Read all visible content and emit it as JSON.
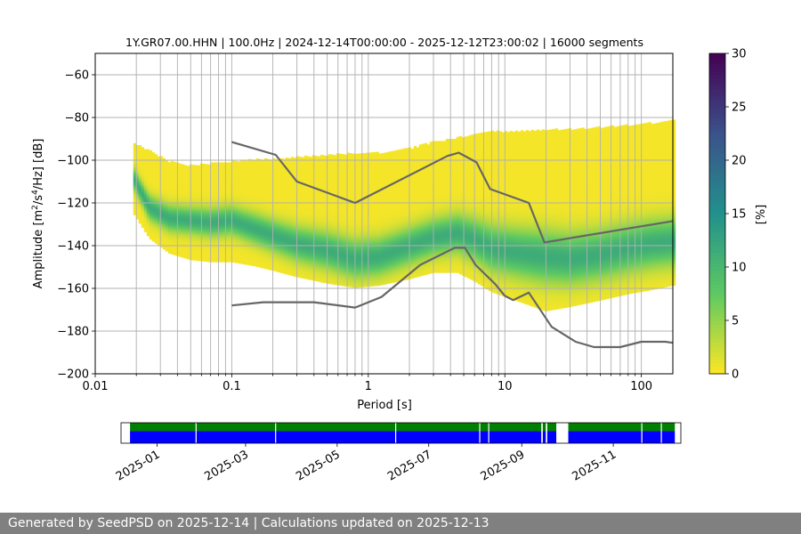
{
  "chart_data": {
    "type": "heatmap",
    "title": "1Y.GR07.00.HHN | 100.0Hz | 2024-12-14T00:00:00 - 2025-12-12T23:00:02 | 16000 segments",
    "xlabel": "Period [s]",
    "ylabel_parts": [
      "Amplitude [m",
      "2",
      "/s",
      "4",
      "/Hz] [dB]"
    ],
    "x_scale": "log",
    "xlim": [
      0.01,
      170
    ],
    "ylim": [
      -200,
      -50
    ],
    "x_ticks": [
      {
        "v": 0.01,
        "label": "0.01"
      },
      {
        "v": 0.1,
        "label": "0.1"
      },
      {
        "v": 1,
        "label": "1"
      },
      {
        "v": 10,
        "label": "10"
      },
      {
        "v": 100,
        "label": "100"
      }
    ],
    "y_ticks": [
      {
        "v": -60,
        "label": "−60"
      },
      {
        "v": -80,
        "label": "−80"
      },
      {
        "v": -100,
        "label": "−100"
      },
      {
        "v": -120,
        "label": "−120"
      },
      {
        "v": -140,
        "label": "−140"
      },
      {
        "v": -160,
        "label": "−160"
      },
      {
        "v": -180,
        "label": "−180"
      },
      {
        "v": -200,
        "label": "−200"
      }
    ],
    "grid": "on",
    "colorbar": {
      "label": "[%]",
      "range": [
        0,
        30
      ],
      "ticks": [
        {
          "v": 0,
          "label": "0"
        },
        {
          "v": 5,
          "label": "5"
        },
        {
          "v": 10,
          "label": "10"
        },
        {
          "v": 15,
          "label": "15"
        },
        {
          "v": 20,
          "label": "20"
        },
        {
          "v": 25,
          "label": "25"
        },
        {
          "v": 30,
          "label": "30"
        }
      ],
      "colormap": [
        "#fde725",
        "#5ec962",
        "#21918c",
        "#3b528b",
        "#440154"
      ]
    },
    "distribution": {
      "period": [
        0.019,
        0.025,
        0.035,
        0.05,
        0.07,
        0.1,
        0.15,
        0.2,
        0.3,
        0.5,
        0.8,
        1.2,
        2,
        3,
        4.5,
        6,
        8,
        12,
        20,
        30,
        50,
        80,
        120,
        170
      ],
      "mode_db": [
        -108,
        -122,
        -127,
        -128,
        -129,
        -128,
        -132,
        -135,
        -139,
        -142,
        -146,
        -145,
        -140,
        -136,
        -134,
        -137,
        -141,
        -143,
        -145,
        -146,
        -144,
        -141,
        -139,
        -138
      ],
      "upper_db": [
        -92,
        -96,
        -101,
        -103,
        -102,
        -101,
        -100,
        -100,
        -99,
        -98,
        -97,
        -97,
        -95,
        -92,
        -90,
        -88,
        -87,
        -87,
        -86,
        -86,
        -85,
        -84,
        -83,
        -82
      ],
      "lower_db": [
        -124,
        -136,
        -143,
        -146,
        -147,
        -147,
        -149,
        -151,
        -154,
        -157,
        -159,
        -158,
        -155,
        -152,
        -152,
        -156,
        -161,
        -165,
        -170,
        -168,
        -165,
        -162,
        -160,
        -158
      ]
    },
    "series": [
      {
        "name": "",
        "x": [
          0.1,
          0.21,
          0.3,
          0.8,
          3.8,
          4.6,
          6.2,
          7.8,
          15,
          19.5,
          170
        ],
        "y": [
          -91.5,
          -97.5,
          -110,
          -120,
          -98,
          -96.5,
          -101,
          -113.5,
          -120,
          -138.5,
          -128.5
        ]
      },
      {
        "name": "",
        "x": [
          0.1,
          0.17,
          0.4,
          0.8,
          1.25,
          2.4,
          4.3,
          5.1,
          6.1,
          8.5,
          10,
          11.5,
          15,
          22,
          33,
          45,
          70,
          100,
          150,
          170
        ],
        "y": [
          -168,
          -166.5,
          -166.5,
          -169,
          -164,
          -149,
          -141,
          -141,
          -149,
          -158,
          -163.5,
          -165.5,
          -162,
          -178,
          -185,
          -187.5,
          -187.5,
          -185,
          -185,
          -185.5
        ]
      }
    ],
    "availability": {
      "x_range": [
        "2024-12-08",
        "2025-12-16"
      ],
      "x_ticks": [
        "2025-01",
        "2025-03",
        "2025-05",
        "2025-07",
        "2025-09",
        "2025-11"
      ],
      "data_spans": [
        [
          "2024-12-14",
          "2025-09-14"
        ],
        [
          "2025-09-15",
          "2025-09-17"
        ],
        [
          "2025-09-18",
          "2025-09-24"
        ],
        [
          "2025-10-02",
          "2025-12-12"
        ]
      ],
      "gap_marks": [
        "2025-01-27",
        "2025-03-21",
        "2025-06-09",
        "2025-08-04",
        "2025-08-10",
        "2025-11-20",
        "2025-12-03"
      ],
      "colors": {
        "upper": "#008000",
        "lower": "#0000ff"
      }
    }
  },
  "footer": {
    "text": "Generated by SeedPSD on 2025-12-14 | Calculations updated on 2025-12-13"
  }
}
